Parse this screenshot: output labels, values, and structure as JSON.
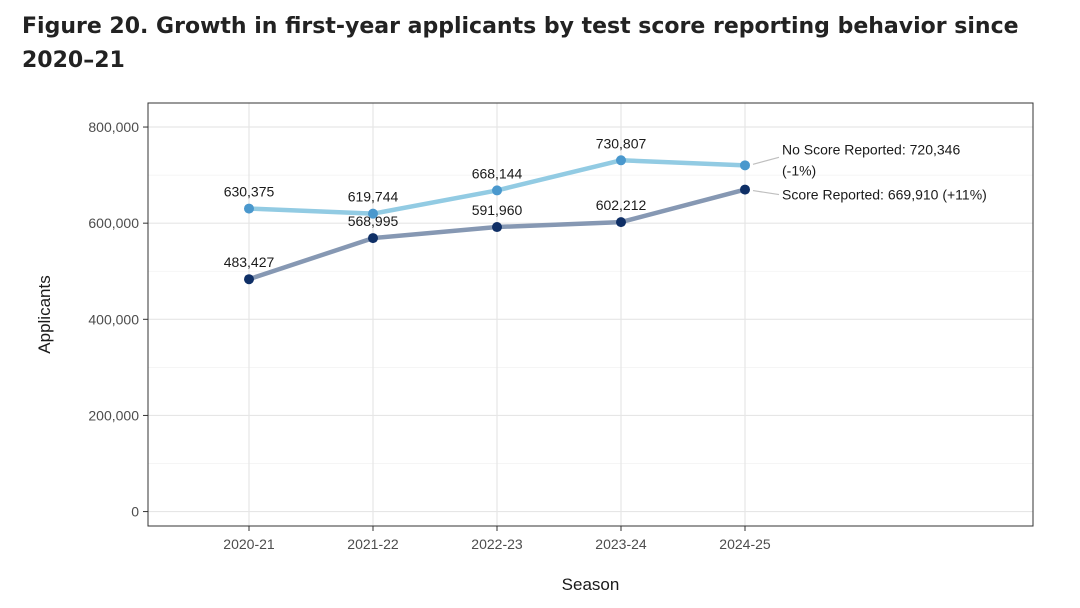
{
  "title": "Figure 20. Growth in first-year applicants by test score reporting behavior since 2020–21",
  "chart_data": {
    "type": "line",
    "categories": [
      "2020-21",
      "2021-22",
      "2022-23",
      "2023-24",
      "2024-25"
    ],
    "series": [
      {
        "name": "No Score Reported",
        "values": [
          630375,
          619744,
          668144,
          730807,
          720346
        ],
        "value_labels": [
          "630,375",
          "619,744",
          "668,144",
          "730,807"
        ],
        "end_label_line1": "No Score Reported: 720,346",
        "end_label_line2": "(-1%)",
        "line_color": "#92cbe3",
        "point_color": "#4a98cd"
      },
      {
        "name": "Score Reported",
        "values": [
          483427,
          568995,
          591960,
          602212,
          669910
        ],
        "value_labels": [
          "483,427",
          "568,995",
          "591,960",
          "602,212"
        ],
        "end_label_line1": "Score Reported: 669,910 (+11%)",
        "line_color": "#8698b3",
        "point_color": "#0f2f66"
      }
    ],
    "xlabel": "Season",
    "ylabel": "Applicants",
    "ylim": [
      -30000,
      850000
    ],
    "yticks": [
      0,
      200000,
      400000,
      600000,
      800000
    ],
    "ytick_labels": [
      "0",
      "200,000",
      "400,000",
      "600,000",
      "800,000"
    ],
    "grid": true
  }
}
